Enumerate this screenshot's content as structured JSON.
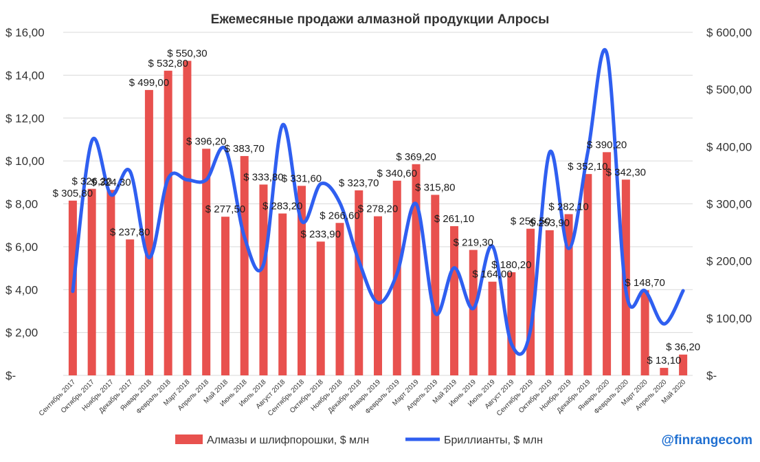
{
  "chart_data": {
    "type": "bar+line",
    "title": "Ежемесяные продажи алмазной продукции Алросы",
    "categories": [
      "Сентябрь 2017",
      "Октябрь 2017",
      "Ноябрь 2017",
      "Декабрь 2017",
      "Январь 2018",
      "Февраль 2018",
      "Март 2018",
      "Апрель 2018",
      "Май 2018",
      "Июнь 2018",
      "Июль 2018",
      "Август 2018",
      "Сентябрь 2018",
      "Октябрь 2018",
      "Ноябрь 2018",
      "Декабрь 2018",
      "Январь 2019",
      "Февраль 2019",
      "Март 2019",
      "Апрель 2019",
      "Май 2019",
      "Июнь 2019",
      "Июль 2019",
      "Август 2019",
      "Сентябрь 2019",
      "Октябрь 2019",
      "Ноябрь 2019",
      "Декабрь 2019",
      "Январь 2020",
      "Февраль 2020",
      "Март 2020",
      "Апрель 2020",
      "Май 2020"
    ],
    "left_axis": {
      "ylim": [
        0,
        16
      ],
      "ticks": [
        "$-",
        "$ 2,00",
        "$ 4,00",
        "$ 6,00",
        "$ 8,00",
        "$ 10,00",
        "$ 12,00",
        "$ 14,00",
        "$ 16,00"
      ]
    },
    "right_axis": {
      "ylim": [
        0,
        600
      ],
      "ticks": [
        "$-",
        "$ 100,00",
        "$ 200,00",
        "$ 300,00",
        "$ 400,00",
        "$ 500,00",
        "$ 600,00"
      ]
    },
    "series": [
      {
        "name": "Алмазы и шлифпорошки, $ млн",
        "type": "bar",
        "axis": "left",
        "color": "#e8514e",
        "values": [
          8.15,
          8.7,
          8.65,
          6.34,
          13.31,
          14.21,
          14.67,
          10.57,
          7.4,
          10.23,
          8.9,
          7.55,
          8.84,
          6.24,
          7.11,
          8.63,
          7.42,
          9.08,
          9.85,
          8.42,
          6.96,
          5.85,
          4.37,
          4.81,
          6.84,
          6.77,
          7.52,
          9.39,
          10.41,
          9.13,
          3.97,
          0.35,
          0.97
        ]
      },
      {
        "name": "Бриллианты, $ млн",
        "type": "line",
        "axis": "right",
        "color": "#2f5ff0",
        "values": [
          147,
          410,
          316,
          357,
          206,
          344,
          342,
          342,
          396,
          242,
          194,
          438,
          270,
          335,
          302,
          200,
          127,
          178,
          300,
          109,
          188,
          117,
          226,
          55,
          80,
          390,
          222,
          390,
          563,
          148,
          148,
          90,
          148
        ]
      }
    ],
    "bar_labels": [
      "$ 305,80",
      "$ 326,20",
      "$ 324,30",
      "$ 237,80",
      "$ 499,00",
      "$ 532,80",
      "$ 550,30",
      "$ 396,20",
      "$ 277,50",
      "$ 383,70",
      "$ 333,80",
      "$ 283,20",
      "$ 331,60",
      "$ 233,90",
      "$ 266,60",
      "$ 323,70",
      "$ 278,20",
      "$ 340,60",
      "$ 369,20",
      "$ 315,80",
      "$ 261,10",
      "$ 219,30",
      "$ 164,00",
      "$ 180,20",
      "$ 256,50",
      "$ 253,90",
      "$ 282,10",
      "$ 352,10",
      "$ 390,20",
      "$ 342,30",
      "$ 148,70",
      "$ 13,10",
      "$ 36,20"
    ],
    "grid": true,
    "legend_position": "bottom"
  },
  "watermark": "@finrangecom"
}
